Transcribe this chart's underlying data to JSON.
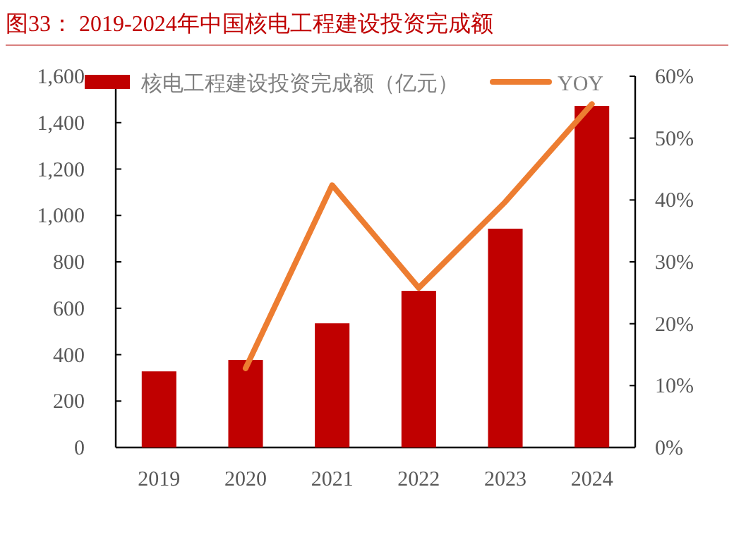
{
  "chart_data": {
    "type": "bar",
    "title": "图33：  2019-2024年中国核电工程建设投资完成额",
    "categories": [
      "2019",
      "2020",
      "2021",
      "2022",
      "2023",
      "2024"
    ],
    "series": [
      {
        "name": "核电工程建设投资完成额（亿元）",
        "color": "#c00000",
        "values": [
          328,
          377,
          535,
          675,
          943,
          1472
        ]
      },
      {
        "name": "YOY",
        "type": "line",
        "axis": "y2",
        "color": "#ed7d31",
        "values": [
          null,
          12.8,
          42.4,
          25.8,
          39.7,
          55.5
        ]
      }
    ],
    "ylim": [
      0,
      1600
    ],
    "yticks": [
      0,
      200,
      400,
      600,
      800,
      {
        "value": 1000,
        "label": "1,000"
      },
      {
        "value": 1200,
        "label": "1,200"
      },
      {
        "value": 1400,
        "label": "1,400"
      },
      {
        "value": 1600,
        "label": "1,600"
      }
    ],
    "y2lim": [
      0,
      60
    ],
    "y2ticks": [
      {
        "value": 0,
        "label": "0%"
      },
      {
        "value": 10,
        "label": "10%"
      },
      {
        "value": 20,
        "label": "20%"
      },
      {
        "value": 30,
        "label": "30%"
      },
      {
        "value": 40,
        "label": "40%"
      },
      {
        "value": 50,
        "label": "50%"
      },
      {
        "value": 60,
        "label": "60%"
      }
    ],
    "legend": "top",
    "grid": false
  }
}
